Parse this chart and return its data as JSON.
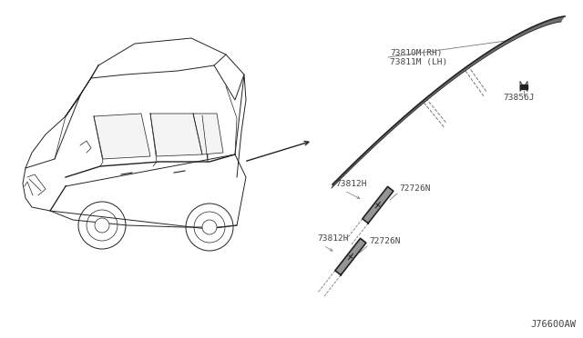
{
  "bg_color": "#ffffff",
  "fig_width": 6.4,
  "fig_height": 3.72,
  "dpi": 100,
  "part_number": "J76600AW",
  "labels": {
    "73810M_RH": "73810M(RH)",
    "73811M_LH": "73811M (LH)",
    "73856J": "73856J",
    "73812H_top": "73812H",
    "72726N_top": "72726N",
    "73812H_bot": "73812H",
    "72726N_bot": "72726N"
  },
  "line_color": "#aaaaaa",
  "dark_color": "#222222",
  "text_color": "#444444",
  "gray_color": "#777777"
}
